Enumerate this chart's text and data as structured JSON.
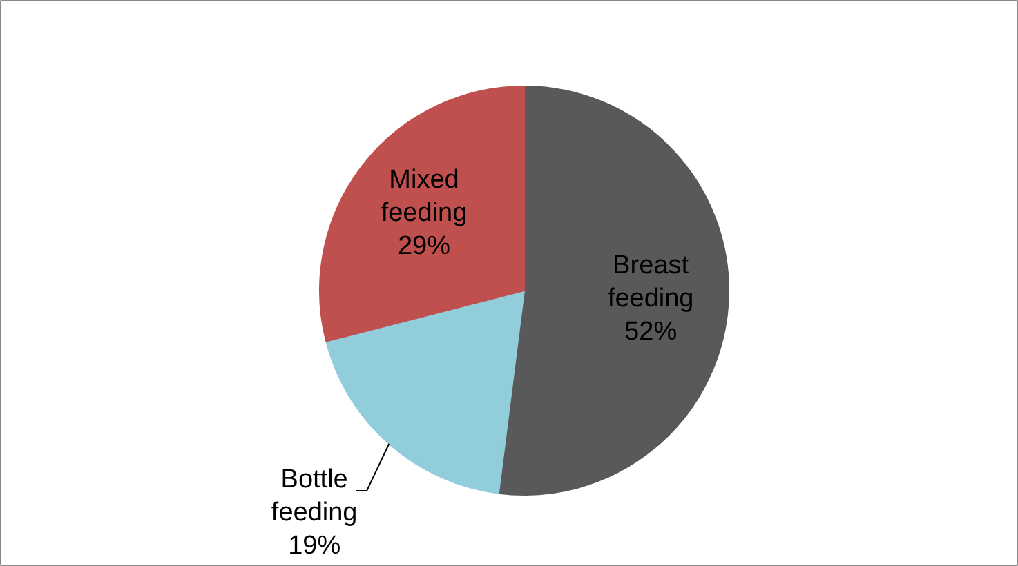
{
  "chart_data": {
    "type": "pie",
    "categories": [
      "Breast feeding",
      "Bottle feeding",
      "Mixed feeding"
    ],
    "values": [
      52,
      19,
      29
    ],
    "value_labels": [
      "52%",
      "19%",
      "29%"
    ],
    "colors": [
      "#595959",
      "#92cddc",
      "#c0504d"
    ]
  }
}
